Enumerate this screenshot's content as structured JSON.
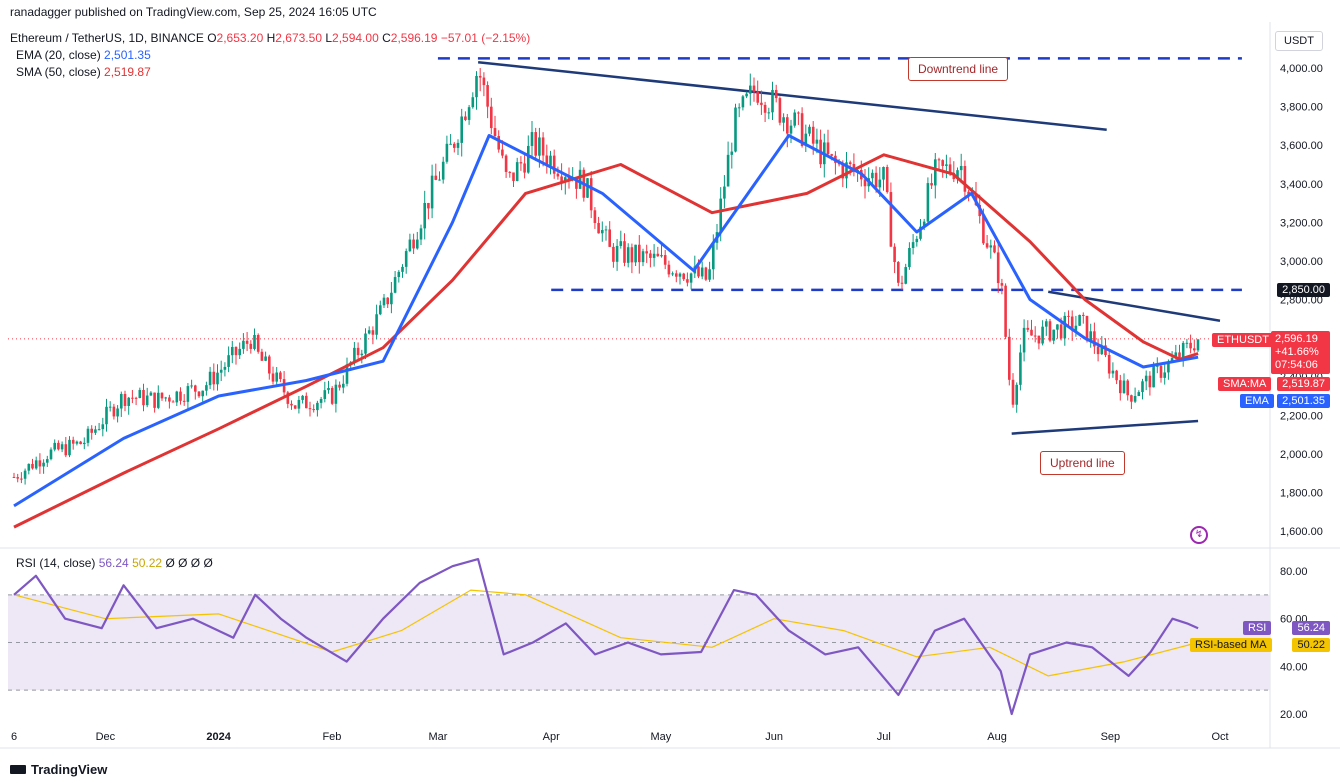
{
  "header": {
    "publisher": "ranadagger published on TradingView.com, Sep 25, 2024 16:05 UTC",
    "symbol": "Ethereum / TetherUS, 1D, BINANCE",
    "o_label": "O",
    "o": "2,653.20",
    "h_label": "H",
    "h": "2,673.50",
    "l_label": "L",
    "l": "2,594.00",
    "c_label": "C",
    "c": "2,596.19",
    "change": "−57.01 (−2.15%)",
    "ema_label": "EMA (20, close)",
    "ema_value": "2,501.35",
    "sma_label": "SMA (50, close)",
    "sma_value": "2,519.87",
    "rsi_label": "RSI (14, close)",
    "rsi_value": "56.24",
    "rsi_ma_value": "50.22",
    "rsi_extra": "Ø Ø Ø Ø"
  },
  "currency": "USDT",
  "price_tags": {
    "resistance": "2,850.00",
    "symbol": "ETHUSDT",
    "last": "2,596.19",
    "pct": "+41.66%",
    "countdown": "07:54:06",
    "sma_tag": "SMA:MA",
    "sma": "2,519.87",
    "ema_tag": "EMA",
    "ema": "2,501.35",
    "rsi_tag": "RSI",
    "rsi": "56.24",
    "rsi_ma_tag": "RSI-based MA",
    "rsi_ma": "50.22"
  },
  "annotations": {
    "downtrend": "Downtrend line",
    "uptrend": "Uptrend line"
  },
  "footer": {
    "brand": "TradingView"
  },
  "colors": {
    "up": "#089981",
    "down": "#f23645",
    "ema": "#2962ff",
    "sma": "#e03333",
    "trend": "#1f3a78",
    "rsi": "#7e57c2",
    "rsi_ma": "#f5c400",
    "rsi_band": "#ede7f6"
  },
  "chart_data": [
    {
      "type": "line",
      "title": "Ethereum / TetherUS, 1D, BINANCE",
      "ylabel": "USDT",
      "ylim": [
        1500,
        4200
      ],
      "yticks": [
        "4,000.00",
        "3,800.00",
        "3,600.00",
        "3,400.00",
        "3,200.00",
        "3,000.00",
        "2,800.00",
        "2,600.00",
        "2,400.00",
        "2,200.00",
        "2,000.00",
        "1,800.00",
        "1,600.00"
      ],
      "ytick_values": [
        4000,
        3800,
        3600,
        3400,
        3200,
        3000,
        2800,
        2600,
        2400,
        2200,
        2000,
        1800,
        1600
      ],
      "x_tick_labels": [
        "6",
        "Dec",
        "2024",
        "Feb",
        "Mar",
        "Apr",
        "May",
        "Jun",
        "Jul",
        "Aug",
        "Sep",
        "Oct"
      ],
      "x_tick_dates": [
        "2023-11-06",
        "2023-12-01",
        "2024-01-01",
        "2024-02-01",
        "2024-03-01",
        "2024-04-01",
        "2024-05-01",
        "2024-06-01",
        "2024-07-01",
        "2024-08-01",
        "2024-09-01",
        "2024-10-01"
      ],
      "series": [
        {
          "name": "ETHUSDT",
          "dates": [
            "2023-11-06",
            "2023-11-15",
            "2023-11-25",
            "2023-12-06",
            "2023-12-15",
            "2023-12-28",
            "2024-01-10",
            "2024-01-12",
            "2024-01-22",
            "2024-02-01",
            "2024-02-15",
            "2024-02-28",
            "2024-03-05",
            "2024-03-12",
            "2024-03-20",
            "2024-03-27",
            "2024-04-10",
            "2024-04-17",
            "2024-04-30",
            "2024-05-14",
            "2024-05-21",
            "2024-05-27",
            "2024-06-07",
            "2024-06-17",
            "2024-07-01",
            "2024-07-05",
            "2024-07-15",
            "2024-07-22",
            "2024-08-02",
            "2024-08-05",
            "2024-08-08",
            "2024-08-24",
            "2024-09-06",
            "2024-09-18",
            "2024-09-25"
          ],
          "values": [
            1880,
            2000,
            2060,
            2300,
            2280,
            2350,
            2600,
            2500,
            2250,
            2300,
            2750,
            3350,
            3600,
            4000,
            3400,
            3600,
            3400,
            3050,
            3000,
            2900,
            3700,
            3900,
            3700,
            3500,
            3420,
            2850,
            3450,
            3500,
            2900,
            2250,
            2600,
            2680,
            2300,
            2480,
            2596
          ]
        },
        {
          "name": "EMA (20, close)",
          "dates": [
            "2023-11-06",
            "2023-12-06",
            "2024-01-01",
            "2024-01-25",
            "2024-02-15",
            "2024-03-05",
            "2024-03-15",
            "2024-04-15",
            "2024-05-10",
            "2024-06-05",
            "2024-06-25",
            "2024-07-10",
            "2024-07-25",
            "2024-08-10",
            "2024-08-25",
            "2024-09-10",
            "2024-09-25"
          ],
          "values": [
            1730,
            2080,
            2300,
            2380,
            2480,
            3200,
            3650,
            3350,
            2950,
            3650,
            3450,
            3150,
            3350,
            2800,
            2600,
            2450,
            2501
          ]
        },
        {
          "name": "SMA (50, close)",
          "dates": [
            "2023-11-06",
            "2023-12-06",
            "2024-01-01",
            "2024-01-25",
            "2024-02-15",
            "2024-03-05",
            "2024-03-25",
            "2024-04-20",
            "2024-05-15",
            "2024-06-10",
            "2024-07-01",
            "2024-07-20",
            "2024-08-10",
            "2024-08-25",
            "2024-09-10",
            "2024-09-20",
            "2024-09-25"
          ],
          "values": [
            1620,
            1900,
            2130,
            2350,
            2550,
            2900,
            3350,
            3500,
            3250,
            3350,
            3550,
            3450,
            3100,
            2800,
            2580,
            2490,
            2520
          ]
        }
      ],
      "lines": [
        {
          "name": "Downtrend line",
          "points": [
            [
              "2024-03-12",
              4030
            ],
            [
              "2024-08-31",
              3680
            ]
          ]
        },
        {
          "name": "Resistance",
          "points": [
            [
              "2024-03-01",
              4050
            ],
            [
              "2024-10-07",
              4050
            ]
          ]
        },
        {
          "name": "Resistance",
          "points": [
            [
              "2024-04-01",
              2850
            ],
            [
              "2024-10-07",
              2850
            ]
          ]
        },
        {
          "name": "Uptrend line",
          "points": [
            [
              "2024-08-05",
              2105
            ],
            [
              "2024-09-25",
              2170
            ]
          ]
        },
        {
          "name": "Trend resistance",
          "points": [
            [
              "2024-08-15",
              2840
            ],
            [
              "2024-10-01",
              2690
            ]
          ]
        }
      ]
    },
    {
      "type": "line",
      "title": "RSI (14, close)",
      "ylim": [
        15,
        90
      ],
      "yticks": [
        "80.00",
        "60.00",
        "40.00",
        "20.00"
      ],
      "ytick_values": [
        80,
        60,
        40,
        20
      ],
      "band": [
        30,
        70
      ],
      "series": [
        {
          "name": "RSI",
          "dates": [
            "2023-11-06",
            "2023-11-12",
            "2023-11-20",
            "2023-11-30",
            "2023-12-06",
            "2023-12-15",
            "2023-12-25",
            "2024-01-05",
            "2024-01-11",
            "2024-01-18",
            "2024-01-25",
            "2024-02-05",
            "2024-02-15",
            "2024-02-25",
            "2024-03-05",
            "2024-03-12",
            "2024-03-19",
            "2024-03-27",
            "2024-04-05",
            "2024-04-13",
            "2024-04-22",
            "2024-05-01",
            "2024-05-12",
            "2024-05-21",
            "2024-05-27",
            "2024-06-05",
            "2024-06-15",
            "2024-06-24",
            "2024-07-05",
            "2024-07-15",
            "2024-07-23",
            "2024-08-02",
            "2024-08-05",
            "2024-08-10",
            "2024-08-20",
            "2024-08-27",
            "2024-09-06",
            "2024-09-12",
            "2024-09-18",
            "2024-09-22",
            "2024-09-25"
          ],
          "values": [
            70,
            78,
            60,
            56,
            74,
            56,
            60,
            52,
            70,
            60,
            52,
            42,
            60,
            75,
            82,
            85,
            45,
            50,
            58,
            45,
            50,
            45,
            46,
            72,
            70,
            55,
            45,
            48,
            28,
            55,
            60,
            38,
            20,
            45,
            50,
            48,
            36,
            46,
            60,
            58,
            56
          ]
        },
        {
          "name": "RSI-based MA",
          "dates": [
            "2023-11-06",
            "2023-12-01",
            "2024-01-01",
            "2024-02-01",
            "2024-02-20",
            "2024-03-10",
            "2024-03-25",
            "2024-04-20",
            "2024-05-15",
            "2024-06-01",
            "2024-06-20",
            "2024-07-10",
            "2024-07-30",
            "2024-08-15",
            "2024-09-05",
            "2024-09-25"
          ],
          "values": [
            70,
            60,
            62,
            46,
            55,
            72,
            70,
            52,
            48,
            60,
            55,
            44,
            48,
            36,
            42,
            50
          ]
        }
      ]
    }
  ]
}
